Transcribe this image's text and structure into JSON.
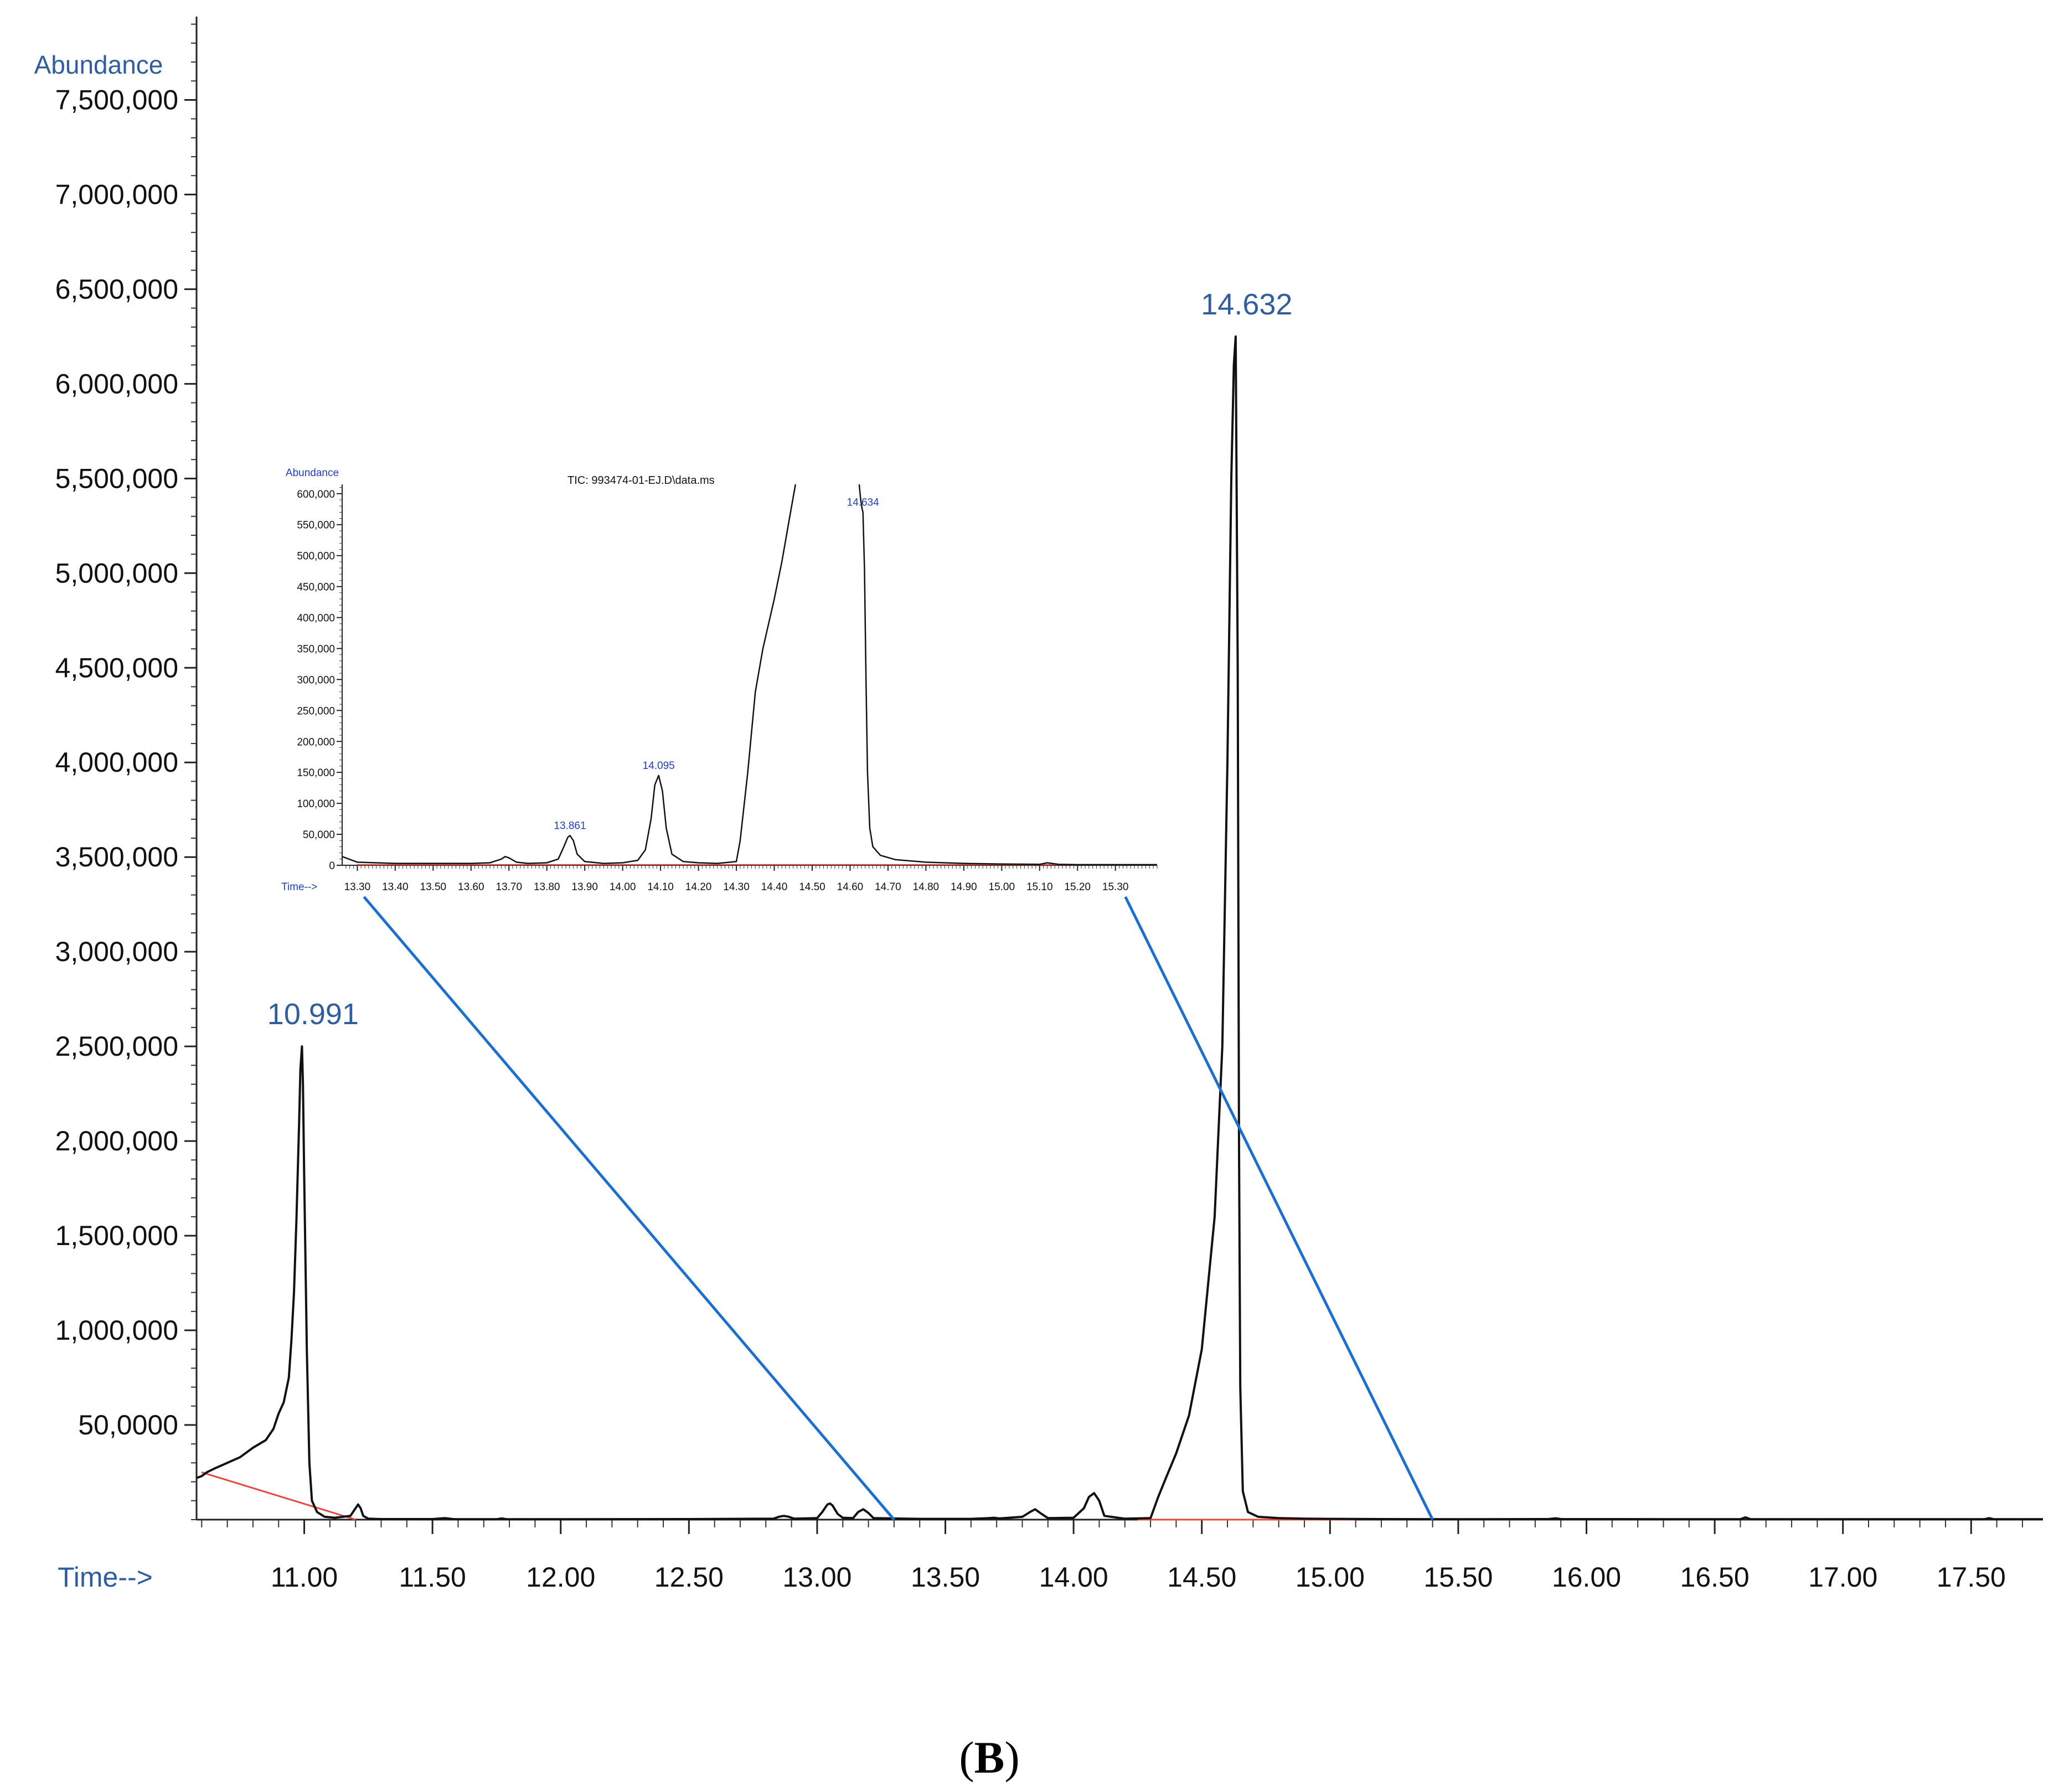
{
  "panel_label_parts": [
    "(",
    "B",
    ")"
  ],
  "colors": {
    "trace": "#111111",
    "baseline": "#e8463c",
    "connector": "#1a6fd0",
    "label_blue": "#2f5d9e",
    "inset_blue": "#1f3fbf"
  },
  "chart_data": [
    {
      "type": "line",
      "ylabel": "Abundance",
      "xlabel": "Time-->",
      "xlim": [
        10.58,
        17.78
      ],
      "ylim": [
        0,
        7940000
      ],
      "y_tick_labels": [
        {
          "value": 500000,
          "label": "50,0000"
        },
        {
          "value": 1000000,
          "label": "1,000,000"
        },
        {
          "value": 1500000,
          "label": "1,500,000"
        },
        {
          "value": 2000000,
          "label": "2,000,000"
        },
        {
          "value": 2500000,
          "label": "2,500,000"
        },
        {
          "value": 3000000,
          "label": "3,000,000"
        },
        {
          "value": 3500000,
          "label": "3,500,000"
        },
        {
          "value": 4000000,
          "label": "4,000,000"
        },
        {
          "value": 4500000,
          "label": "4,500,000"
        },
        {
          "value": 5000000,
          "label": "5,000,000"
        },
        {
          "value": 5500000,
          "label": "5,500,000"
        },
        {
          "value": 6000000,
          "label": "6,000,000"
        },
        {
          "value": 6500000,
          "label": "6,500,000"
        },
        {
          "value": 7000000,
          "label": "7,000,000"
        },
        {
          "value": 7500000,
          "label": "7,500,000"
        }
      ],
      "x_tick_labels": [
        "11.00",
        "11.50",
        "12.00",
        "12.50",
        "13.00",
        "13.50",
        "14.00",
        "14.50",
        "15.00",
        "15.50",
        "16.00",
        "16.50",
        "17.00",
        "17.50"
      ],
      "x_tick_values": [
        11.0,
        11.5,
        12.0,
        12.5,
        13.0,
        13.5,
        14.0,
        14.5,
        15.0,
        15.5,
        16.0,
        16.5,
        17.0,
        17.5
      ],
      "grid": false,
      "legend": "none",
      "peak_annotations": [
        {
          "label": "10.991",
          "x": 10.991,
          "y": 2500000
        },
        {
          "label": "14.632",
          "x": 14.632,
          "y": 6250000
        }
      ],
      "series": [
        {
          "x": [
            10.58,
            10.6,
            10.62,
            10.65,
            10.7,
            10.75,
            10.8,
            10.85,
            10.88,
            10.9,
            10.92,
            10.94,
            10.95,
            10.96,
            10.97,
            10.98,
            10.985,
            10.991,
            10.995,
            11.0,
            11.01,
            11.02,
            11.03,
            11.05,
            11.08,
            11.12,
            11.18,
            11.2,
            11.21,
            11.22,
            11.23,
            11.25,
            11.3,
            11.5,
            11.55,
            11.58,
            11.6,
            11.75,
            11.77,
            11.79,
            12.0,
            12.5,
            12.83,
            12.85,
            12.87,
            12.89,
            12.91,
            13.0,
            13.02,
            13.04,
            13.05,
            13.06,
            13.08,
            13.1,
            13.14,
            13.16,
            13.18,
            13.2,
            13.22,
            13.4,
            13.6,
            13.67,
            13.69,
            13.71,
            13.8,
            13.83,
            13.85,
            13.87,
            13.9,
            14.0,
            14.04,
            14.06,
            14.08,
            14.1,
            14.12,
            14.2,
            14.3,
            14.33,
            14.36,
            14.4,
            14.45,
            14.5,
            14.55,
            14.58,
            14.6,
            14.615,
            14.625,
            14.632,
            14.64,
            14.645,
            14.65,
            14.66,
            14.68,
            14.72,
            14.8,
            14.9,
            15.0,
            15.2,
            15.5,
            15.85,
            15.88,
            15.9,
            16.6,
            16.62,
            16.64,
            17.55,
            17.57,
            17.59,
            17.78
          ],
          "y": [
            220000,
            230000,
            250000,
            270000,
            300000,
            330000,
            380000,
            420000,
            480000,
            560000,
            620000,
            750000,
            950000,
            1200000,
            1600000,
            2100000,
            2380000,
            2500000,
            2300000,
            1800000,
            900000,
            300000,
            100000,
            40000,
            15000,
            10000,
            20000,
            60000,
            80000,
            60000,
            20000,
            5000,
            3000,
            3000,
            8000,
            3000,
            2000,
            2000,
            6000,
            2000,
            2000,
            3000,
            5000,
            15000,
            20000,
            15000,
            5000,
            8000,
            40000,
            80000,
            85000,
            75000,
            30000,
            10000,
            8000,
            40000,
            55000,
            35000,
            8000,
            4000,
            4000,
            8000,
            10000,
            6000,
            15000,
            40000,
            55000,
            35000,
            8000,
            10000,
            60000,
            120000,
            140000,
            100000,
            20000,
            5000,
            8000,
            120000,
            220000,
            350000,
            550000,
            900000,
            1600000,
            2500000,
            4000000,
            5500000,
            6100000,
            6250000,
            4500000,
            2000000,
            700000,
            150000,
            40000,
            15000,
            8000,
            5000,
            4000,
            3000,
            2000,
            3000,
            7000,
            3000,
            2000,
            12000,
            2000,
            2000,
            8000,
            2000,
            2000
          ]
        }
      ],
      "baseline_segments": [
        {
          "x": [
            10.6,
            11.2
          ],
          "y": [
            250000,
            0
          ]
        },
        {
          "x": [
            14.25,
            15.1
          ],
          "y": [
            0,
            0
          ]
        }
      ],
      "zoom_range": [
        13.3,
        15.4
      ]
    },
    {
      "type": "line",
      "title": "TIC: 993474-01-EJ.D\\data.ms",
      "ylabel": "Abundance",
      "xlabel": "Time-->",
      "xlim": [
        13.26,
        15.41
      ],
      "ylim": [
        0,
        615000
      ],
      "y_tick_labels": [
        "0",
        "50,000",
        "100,000",
        "150,000",
        "200,000",
        "250,000",
        "300,000",
        "350,000",
        "400,000",
        "450,000",
        "500,000",
        "550,000",
        "600,000"
      ],
      "y_tick_values": [
        0,
        50000,
        100000,
        150000,
        200000,
        250000,
        300000,
        350000,
        400000,
        450000,
        500000,
        550000,
        600000
      ],
      "x_tick_labels": [
        "13.30",
        "13.40",
        "13.50",
        "13.60",
        "13.70",
        "13.80",
        "13.90",
        "14.00",
        "14.10",
        "14.20",
        "14.30",
        "14.40",
        "14.50",
        "14.60",
        "14.70",
        "14.80",
        "14.90",
        "15.00",
        "15.10",
        "15.20",
        "15.30"
      ],
      "x_tick_values": [
        13.3,
        13.4,
        13.5,
        13.6,
        13.7,
        13.8,
        13.9,
        14.0,
        14.1,
        14.2,
        14.3,
        14.4,
        14.5,
        14.6,
        14.7,
        14.8,
        14.9,
        15.0,
        15.1,
        15.2,
        15.3
      ],
      "grid": false,
      "legend": "none",
      "peak_annotations": [
        {
          "label": "13.861",
          "x": 13.861,
          "y": 48000
        },
        {
          "label": "14.095",
          "x": 14.095,
          "y": 145000
        },
        {
          "label": "14.634",
          "x": 14.634,
          "y": 570000
        }
      ],
      "series": [
        {
          "x": [
            13.26,
            13.3,
            13.4,
            13.5,
            13.6,
            13.65,
            13.68,
            13.69,
            13.7,
            13.72,
            13.75,
            13.8,
            13.83,
            13.845,
            13.855,
            13.861,
            13.87,
            13.88,
            13.9,
            13.95,
            14.0,
            14.04,
            14.06,
            14.075,
            14.085,
            14.095,
            14.105,
            14.115,
            14.13,
            14.16,
            14.2,
            14.25,
            14.3,
            14.31,
            14.33,
            14.35,
            14.37,
            14.4,
            14.42,
            14.44,
            14.456
          ],
          "y": [
            14000,
            5000,
            3000,
            3000,
            3000,
            4000,
            10000,
            14000,
            12000,
            5000,
            3000,
            4000,
            10000,
            30000,
            45000,
            48000,
            40000,
            18000,
            6000,
            3000,
            4000,
            8000,
            25000,
            75000,
            130000,
            145000,
            120000,
            60000,
            18000,
            6000,
            4000,
            3000,
            6000,
            40000,
            150000,
            280000,
            350000,
            430000,
            490000,
            560000,
            615000
          ]
        },
        {
          "x": [
            14.624,
            14.628,
            14.632,
            14.634,
            14.638,
            14.642,
            14.646,
            14.652,
            14.66,
            14.68,
            14.72,
            14.8,
            14.9,
            15.0,
            15.1,
            15.12,
            15.15,
            15.2,
            15.3,
            15.41
          ],
          "y": [
            615000,
            590000,
            575000,
            570000,
            480000,
            300000,
            150000,
            60000,
            30000,
            16000,
            9000,
            5000,
            3000,
            2000,
            1500,
            4000,
            1500,
            1000,
            1000,
            1000
          ]
        }
      ]
    }
  ]
}
